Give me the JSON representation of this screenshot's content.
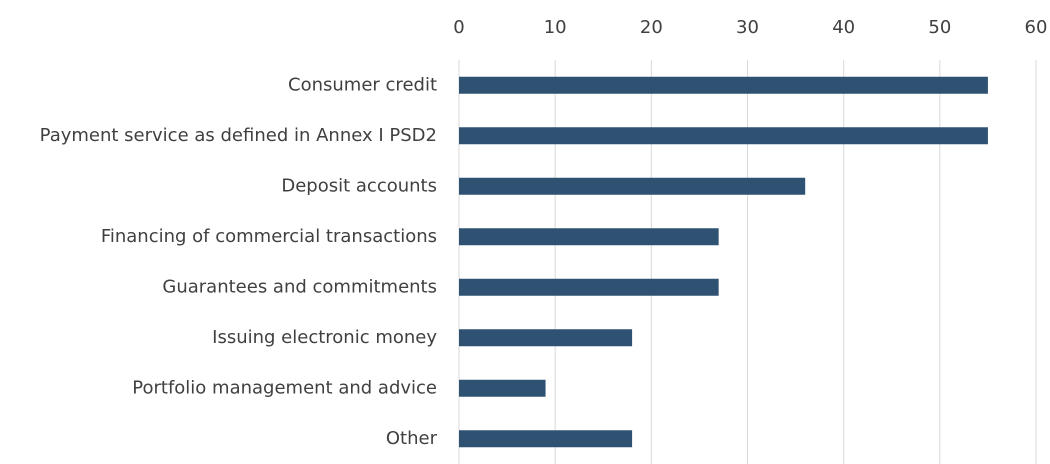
{
  "chart_data": {
    "type": "bar",
    "orientation": "horizontal",
    "categories": [
      "Consumer credit",
      "Payment service as defined in Annex I PSD2",
      "Deposit accounts",
      "Financing of commercial transactions",
      "Guarantees and commitments",
      "Issuing electronic money",
      "Portfolio management and advice",
      "Other"
    ],
    "values": [
      55,
      55,
      36,
      27,
      27,
      18,
      9,
      18
    ],
    "color": "#2f5273",
    "xlim": [
      0,
      60
    ],
    "xticks": [
      0,
      10,
      20,
      30,
      40,
      50,
      60
    ],
    "grid": true
  }
}
